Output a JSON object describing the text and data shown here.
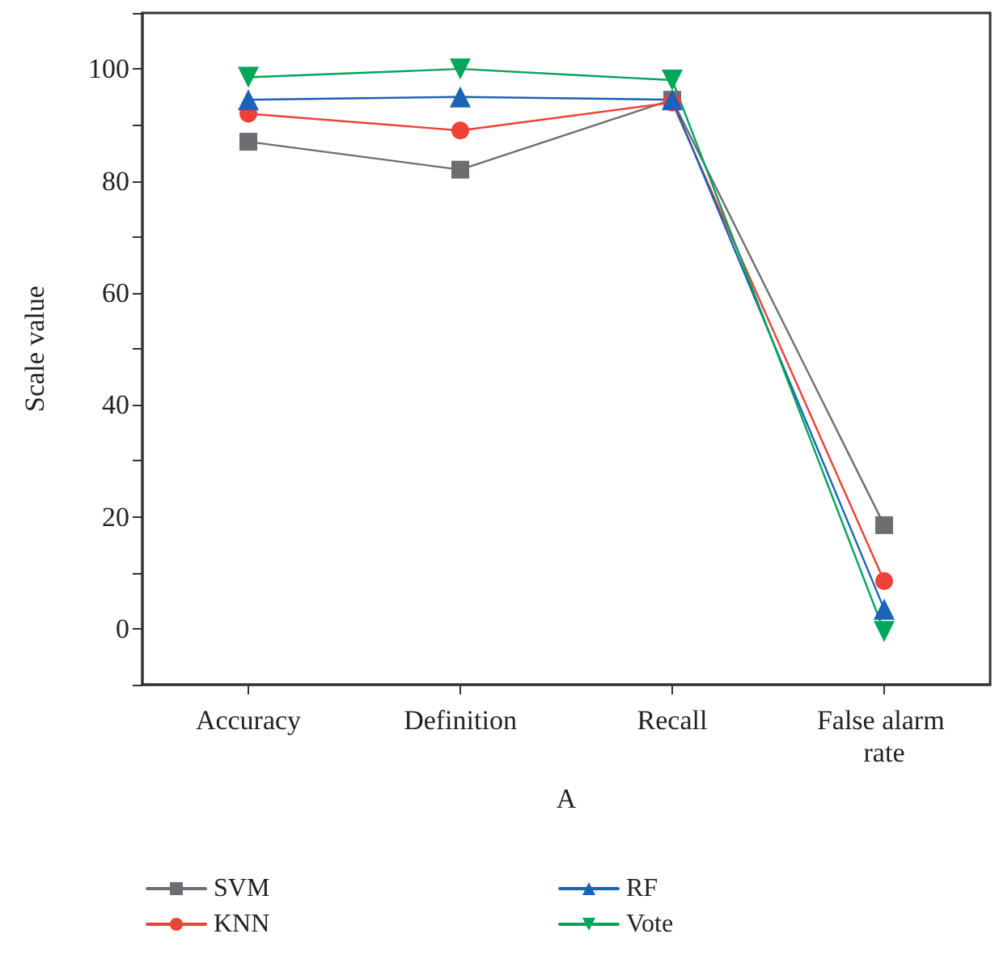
{
  "chart_data": {
    "type": "line",
    "xlabel": "A",
    "ylabel": "Scale value",
    "categories": [
      "Accuracy",
      "Definition",
      "Recall",
      "False alarm rate"
    ],
    "series": [
      {
        "name": "SVM",
        "color": "#6d6e71",
        "marker": "square",
        "values": [
          87,
          82,
          94.5,
          18.5
        ]
      },
      {
        "name": "KNN",
        "color": "#ef4136",
        "marker": "circle",
        "values": [
          92,
          89,
          94,
          8.5
        ]
      },
      {
        "name": "RF",
        "color": "#1b63b5",
        "marker": "triangle",
        "values": [
          94.5,
          95,
          94.5,
          3.5
        ]
      },
      {
        "name": "Vote",
        "color": "#00a65a",
        "marker": "triangle-down",
        "values": [
          98.5,
          100,
          98,
          -0.5
        ]
      }
    ],
    "ylim": [
      -10,
      110
    ],
    "yticks": [
      {
        "value": -10,
        "label": null
      },
      0,
      {
        "value": 10,
        "label": null
      },
      20,
      {
        "value": 30,
        "label": null
      },
      40,
      {
        "value": 50,
        "label": null
      },
      60,
      {
        "value": 70,
        "label": null
      },
      80,
      {
        "value": 90,
        "label": null
      },
      100,
      {
        "value": 110,
        "label": null
      }
    ],
    "grid": false,
    "legend": "bottom",
    "line_style": "solid"
  }
}
